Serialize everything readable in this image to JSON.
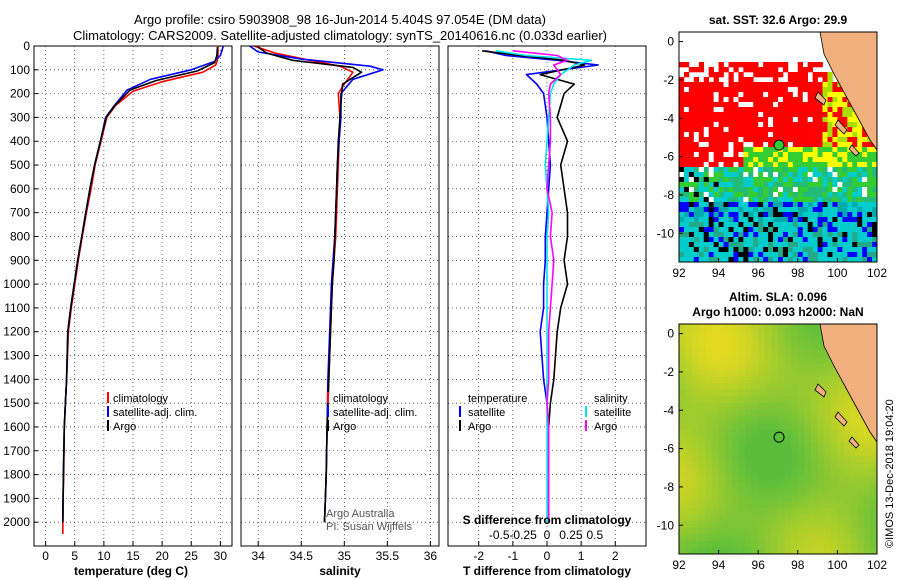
{
  "header": {
    "title_line1": "Argo profile: csiro 5903908_98 16-Jun-2014 5.404S 97.054E (DM data)",
    "title_line2": "Climatology: CARS2009. Satellite-adjusted climatology: synTS_20140616.nc (0.033d earlier)"
  },
  "colors": {
    "climatology": "#ff0000",
    "satellite": "#0000ff",
    "argo": "#000000",
    "sat_salinity": "#00e5ee",
    "argo_salinity": "#ff00ff"
  },
  "chart_data": [
    {
      "type": "line",
      "id": "temperature",
      "xlabel": "temperature (deg C)",
      "ylabel": "",
      "xlim": [
        -2,
        32
      ],
      "ylim": [
        2100,
        0
      ],
      "xticks": [
        "0",
        "5",
        "10",
        "15",
        "20",
        "25",
        "30"
      ],
      "xtick_values": [
        0,
        5,
        10,
        15,
        20,
        25,
        30
      ],
      "yticks": [
        "0",
        "100",
        "200",
        "300",
        "400",
        "500",
        "600",
        "700",
        "800",
        "900",
        "1000",
        "1100",
        "1200",
        "1300",
        "1400",
        "1500",
        "1600",
        "1700",
        "1800",
        "1900",
        "2000"
      ],
      "legend": [
        "climatology",
        "satellite-adj. clim.",
        "Argo"
      ],
      "series": [
        {
          "name": "climatology",
          "x": [
            29.6,
            29.6,
            29.2,
            27,
            20,
            15,
            12,
            10.5,
            9.5,
            8.5,
            7.8,
            7,
            6.3,
            5.6,
            5,
            4.4,
            3.9,
            3.6,
            3.4,
            3.2,
            3.1,
            3.0,
            2.95
          ],
          "depth": [
            0,
            50,
            80,
            110,
            150,
            190,
            250,
            300,
            400,
            500,
            600,
            700,
            800,
            900,
            1000,
            1100,
            1200,
            1400,
            1500,
            1600,
            1800,
            1900,
            2050
          ]
        },
        {
          "name": "satellite-adj. clim.",
          "x": [
            30.5,
            30,
            29,
            25,
            18,
            14,
            11.8,
            10.3,
            9.4,
            8.4,
            7.6,
            6.9,
            6.2,
            5.5,
            4.9,
            4.3,
            3.8,
            3.6,
            3.4,
            3.2,
            3.05,
            2.95
          ],
          "depth": [
            0,
            40,
            65,
            100,
            140,
            185,
            250,
            300,
            400,
            500,
            600,
            700,
            800,
            900,
            1000,
            1100,
            1200,
            1400,
            1500,
            1600,
            1800,
            2000
          ]
        },
        {
          "name": "Argo",
          "x": [
            29.5,
            29.4,
            29.0,
            26,
            19,
            14.5,
            11.9,
            10.4,
            9.4,
            8.4,
            7.6,
            6.9,
            6.2,
            5.5,
            4.9,
            4.3,
            3.8,
            3.6,
            3.4,
            3.2,
            3.05,
            2.95
          ],
          "depth": [
            5,
            40,
            70,
            105,
            145,
            185,
            250,
            300,
            400,
            500,
            600,
            700,
            800,
            900,
            1000,
            1100,
            1200,
            1400,
            1500,
            1600,
            1800,
            2000
          ]
        }
      ]
    },
    {
      "type": "line",
      "id": "salinity",
      "xlabel": "salinity",
      "xlim": [
        33.8,
        36.1
      ],
      "ylim": [
        2100,
        0
      ],
      "xticks": [
        "34",
        "34.5",
        "35",
        "35.5",
        "36"
      ],
      "xtick_values": [
        34,
        34.5,
        35,
        35.5,
        36
      ],
      "legend": [
        "climatology",
        "satellite-adj. clim.",
        "Argo"
      ],
      "annotations": [
        "Argo Australia",
        "PI: Susan Wijffels"
      ],
      "series": [
        {
          "name": "climatology",
          "x": [
            33.95,
            34.2,
            34.6,
            34.95,
            35.1,
            35.0,
            34.93,
            34.95,
            34.94,
            34.93,
            34.92,
            34.91,
            34.9,
            34.88,
            34.86,
            34.84,
            34.82,
            34.8,
            34.79,
            34.78,
            34.77
          ],
          "depth": [
            0,
            30,
            60,
            85,
            110,
            160,
            200,
            300,
            400,
            500,
            600,
            700,
            800,
            900,
            1000,
            1200,
            1400,
            1600,
            1800,
            1900,
            2000
          ]
        },
        {
          "name": "satellite-adj. clim.",
          "x": [
            33.9,
            34.0,
            34.5,
            35.3,
            35.45,
            35.1,
            34.96,
            34.96,
            34.94,
            34.92,
            34.91,
            34.9,
            34.89,
            34.87,
            34.85,
            34.83,
            34.81,
            34.8,
            34.79,
            34.78,
            34.77
          ],
          "depth": [
            0,
            25,
            55,
            85,
            100,
            140,
            200,
            300,
            400,
            500,
            600,
            700,
            800,
            900,
            1000,
            1200,
            1400,
            1600,
            1800,
            1900,
            2000
          ]
        },
        {
          "name": "Argo",
          "x": [
            34.0,
            34.1,
            34.4,
            35.1,
            35.2,
            34.98,
            34.97,
            34.95,
            34.93,
            34.92,
            34.91,
            34.9,
            34.89,
            34.88,
            34.86,
            34.84,
            34.82,
            34.8,
            34.79,
            34.78,
            34.77
          ],
          "depth": [
            5,
            30,
            60,
            90,
            110,
            160,
            200,
            300,
            400,
            500,
            600,
            700,
            800,
            900,
            1000,
            1200,
            1400,
            1600,
            1800,
            1900,
            2000
          ]
        }
      ]
    },
    {
      "type": "line",
      "id": "difference",
      "xlabel": "T difference from climatology",
      "xlabel2": "S difference from climatology",
      "xlim": [
        -2.9,
        2.9
      ],
      "ylim": [
        2100,
        0
      ],
      "xticks": [
        "-2",
        "-1",
        "0",
        "1",
        "2"
      ],
      "xtick_values": [
        -2,
        -1,
        0,
        1,
        2
      ],
      "xticks2": [
        "-0.5",
        "-0.25",
        "0",
        "0.25",
        "0.5"
      ],
      "xtick2_values": [
        -1.4,
        -0.7,
        0,
        0.7,
        1.4
      ],
      "legend_left_title": "temperature",
      "legend_right_title": "salinity",
      "legend_left": [
        "satellite",
        "Argo"
      ],
      "legend_right": [
        "satellite",
        "Argo"
      ],
      "series": [
        {
          "name": "temperature satellite",
          "x": [
            -1.8,
            -1.2,
            0.3,
            1.5,
            -0.6,
            -0.3,
            -0.1,
            0.0,
            0.05,
            0.1,
            0.05,
            0.0,
            -0.05,
            -0.05,
            -0.1,
            -0.1,
            -0.2,
            -0.1,
            0.0,
            0.05,
            0.05,
            0.05
          ],
          "depth": [
            20,
            40,
            60,
            80,
            120,
            160,
            200,
            300,
            400,
            500,
            600,
            700,
            800,
            900,
            1000,
            1100,
            1200,
            1400,
            1500,
            1600,
            1800,
            2000
          ]
        },
        {
          "name": "temperature Argo",
          "x": [
            -1.9,
            -0.8,
            0.5,
            1.1,
            -0.2,
            0.8,
            0.5,
            0.3,
            0.6,
            0.4,
            0.5,
            0.6,
            0.6,
            0.5,
            0.6,
            0.4,
            0.3,
            0.2,
            0.1,
            0.05,
            0.05,
            0.05
          ],
          "depth": [
            20,
            40,
            60,
            80,
            120,
            160,
            200,
            300,
            400,
            500,
            600,
            700,
            800,
            900,
            1000,
            1100,
            1200,
            1400,
            1500,
            1600,
            1800,
            2000
          ]
        },
        {
          "name": "salinity satellite",
          "x": [
            -1.5,
            -0.6,
            1.3,
            0.8,
            0.4,
            0.2,
            0.1,
            0.05,
            0.0,
            -0.05,
            0.0,
            0.05,
            0.0,
            0.0,
            0.0,
            0.0,
            0.0,
            0.0,
            0.0,
            0.0,
            0.0,
            0.0
          ],
          "depth": [
            20,
            40,
            60,
            80,
            120,
            160,
            200,
            300,
            400,
            500,
            600,
            700,
            800,
            900,
            1000,
            1100,
            1200,
            1400,
            1500,
            1600,
            1800,
            2000
          ]
        },
        {
          "name": "salinity Argo",
          "x": [
            -1.0,
            0.3,
            0.6,
            0.2,
            0.4,
            0.1,
            0.05,
            0.1,
            0.1,
            0.05,
            0.0,
            0.15,
            0.1,
            0.2,
            0.15,
            0.1,
            0.05,
            0.05,
            0.0,
            0.05,
            0.05,
            0.05
          ],
          "depth": [
            20,
            40,
            60,
            80,
            120,
            160,
            200,
            300,
            400,
            500,
            600,
            700,
            800,
            900,
            1000,
            1100,
            1200,
            1400,
            1500,
            1600,
            1800,
            2000
          ]
        }
      ]
    },
    {
      "type": "heatmap",
      "id": "sst_map",
      "title": "sat. SST: 32.6 Argo: 29.9",
      "xlim": [
        92,
        102
      ],
      "ylim": [
        -11.5,
        0.5
      ],
      "xticks": [
        "92",
        "94",
        "96",
        "98",
        "100",
        "102"
      ],
      "xtick_values": [
        92,
        94,
        96,
        98,
        100,
        102
      ],
      "yticks": [
        "0",
        "-2",
        "-4",
        "-6",
        "-8",
        "-10"
      ],
      "ytick_values": [
        0,
        -2,
        -4,
        -6,
        -8,
        -10
      ],
      "float_position": [
        97.054,
        -5.404
      ]
    },
    {
      "type": "heatmap",
      "id": "sla_map",
      "title": "Altim. SLA: 0.096",
      "subtitle": "Argo h1000: 0.093 h2000: NaN",
      "xlim": [
        92,
        102
      ],
      "ylim": [
        -11.5,
        0.5
      ],
      "xticks": [
        "92",
        "94",
        "96",
        "98",
        "100",
        "102"
      ],
      "xtick_values": [
        92,
        94,
        96,
        98,
        100,
        102
      ],
      "yticks": [
        "0",
        "-2",
        "-4",
        "-6",
        "-8",
        "-10"
      ],
      "ytick_values": [
        0,
        -2,
        -4,
        -6,
        -8,
        -10
      ],
      "float_position": [
        97.054,
        -5.404
      ]
    }
  ],
  "footer": {
    "credit": "©IMOS 13-Dec-2018 19:04:20"
  }
}
